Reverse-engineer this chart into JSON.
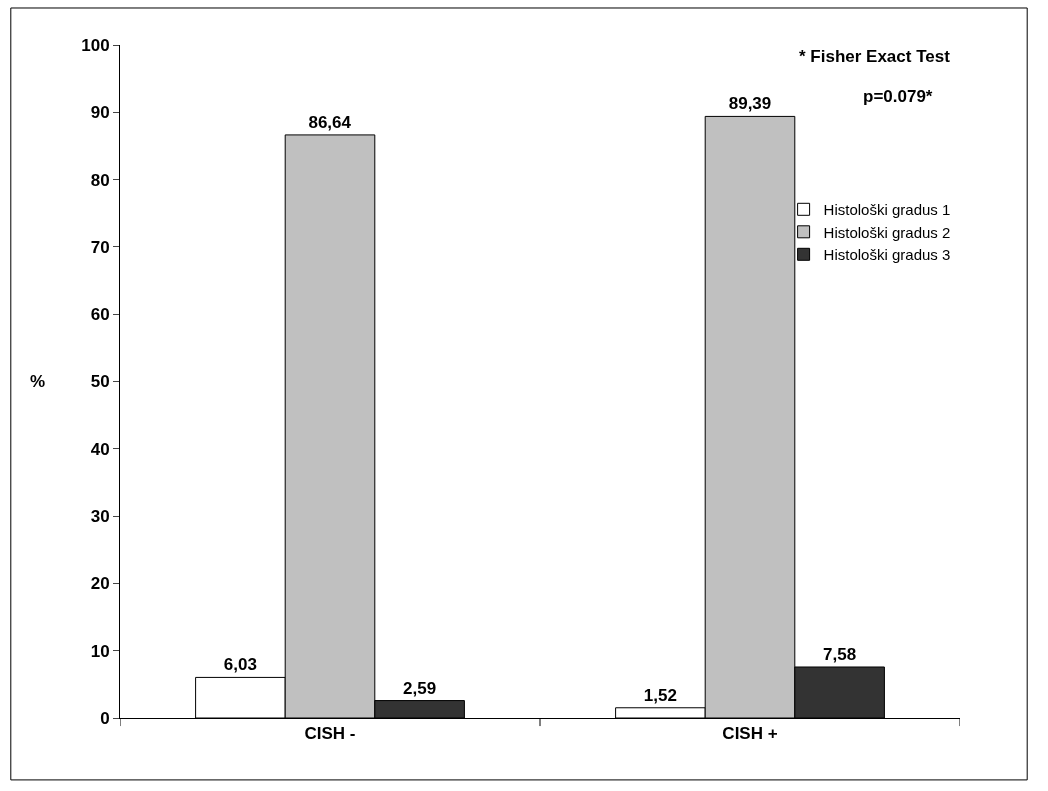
{
  "chart_data": {
    "type": "bar",
    "ylabel": "%",
    "categories": [
      "CISH -",
      "CISH +"
    ],
    "series": [
      {
        "name": "Histološki gradus 1",
        "color": "#ffffff",
        "values": [
          6.03,
          1.52
        ],
        "value_labels": [
          "6,03",
          "1,52"
        ]
      },
      {
        "name": "Histološki gradus 2",
        "color": "#c0c0c0",
        "values": [
          86.64,
          89.39
        ],
        "value_labels": [
          "86,64",
          "89,39"
        ]
      },
      {
        "name": "Histološki gradus 3",
        "color": "#333333",
        "values": [
          2.59,
          7.58
        ],
        "value_labels": [
          "2,59",
          "7,58"
        ]
      }
    ],
    "ylim": [
      0,
      100
    ],
    "yticks": [
      0,
      10,
      20,
      30,
      40,
      50,
      60,
      70,
      80,
      90,
      100
    ],
    "annotations": [
      "* Fisher Exact Test",
      "p=0.079*"
    ],
    "legend": "right"
  }
}
